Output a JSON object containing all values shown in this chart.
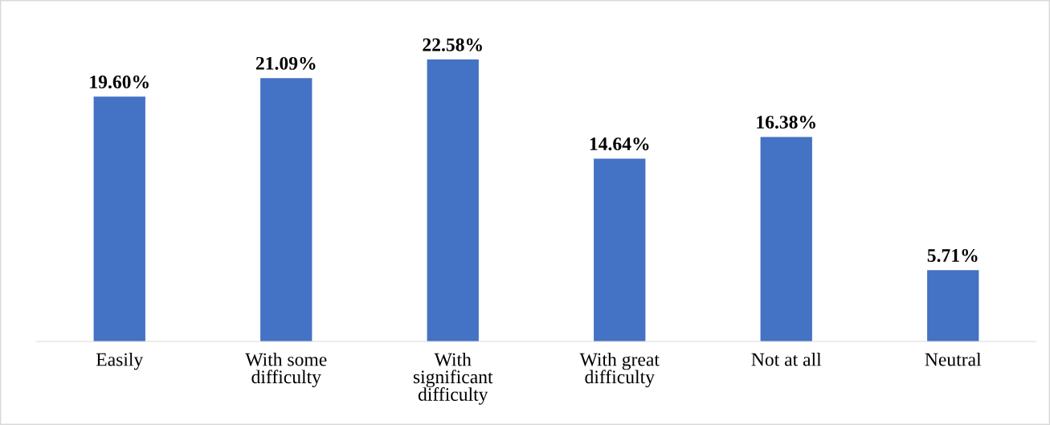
{
  "chart_data": {
    "type": "bar",
    "categories": [
      "Easily",
      "With some\ndifficulty",
      "With\nsignificant\ndifficulty",
      "With great\ndifficulty",
      "Not at all",
      "Neutral"
    ],
    "values": [
      19.6,
      21.09,
      22.58,
      14.64,
      16.38,
      5.71
    ],
    "value_labels": [
      "19.60%",
      "21.09%",
      "22.58%",
      "14.64%",
      "16.38%",
      "5.71%"
    ],
    "color": "#4472c4",
    "grid": false,
    "legend": false
  }
}
